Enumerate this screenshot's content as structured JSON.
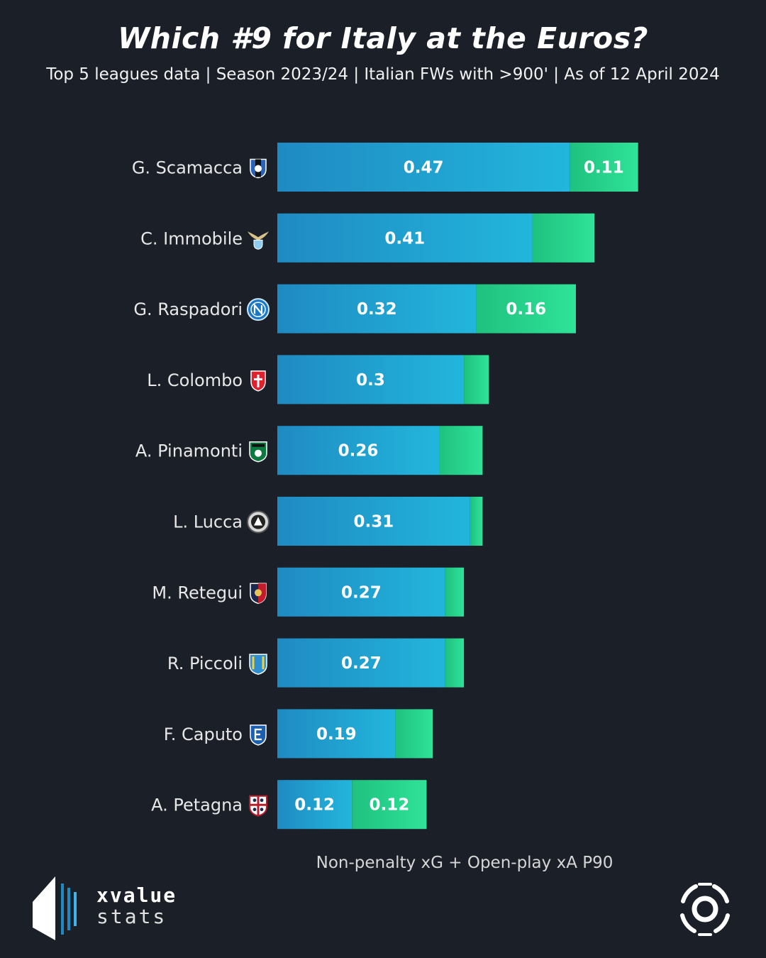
{
  "title": "Which #9 for Italy at the Euros?",
  "subtitle": "Top 5 leagues data | Season 2023/24 | Italian FWs with >900' | As of 12 April 2024",
  "brand": {
    "line1": "xvalue",
    "line2": "stats"
  },
  "colors": {
    "background": "#1b1f28",
    "xg_start": "#1f8ac2",
    "xg_end": "#22b6dc",
    "xa_start": "#1fc17f",
    "xa_end": "#2fe398"
  },
  "chart_data": {
    "type": "bar",
    "orientation": "horizontal",
    "stacked": true,
    "title": "Which #9 for Italy at the Euros?",
    "xlabel": "Non-penalty xG + Open-play xA P90",
    "ylabel": "",
    "xlim": [
      0,
      0.7
    ],
    "grid": false,
    "categories": [
      "G. Scamacca",
      "C. Immobile",
      "G. Raspadori",
      "L. Colombo",
      "A. Pinamonti",
      "L. Lucca",
      "M. Retegui",
      "R. Piccoli",
      "F. Caputo",
      "A. Petagna"
    ],
    "team_icons": [
      "atalanta-icon",
      "lazio-icon",
      "napoli-icon",
      "monza-icon",
      "sassuolo-icon",
      "udinese-icon",
      "genoa-icon",
      "lecce-icon",
      "empoli-icon",
      "cagliari-icon"
    ],
    "series": [
      {
        "name": "Non-penalty xG P90",
        "values": [
          0.47,
          0.41,
          0.32,
          0.3,
          0.26,
          0.31,
          0.27,
          0.27,
          0.19,
          0.12
        ],
        "labels": [
          "0.47",
          "0.41",
          "0.32",
          "0.3",
          "0.26",
          "0.31",
          "0.27",
          "0.27",
          "0.19",
          "0.12"
        ]
      },
      {
        "name": "Open-play xA P90",
        "values": [
          0.11,
          0.1,
          0.16,
          0.04,
          0.07,
          0.02,
          0.03,
          0.03,
          0.06,
          0.12
        ],
        "labels": [
          "0.11",
          "",
          "0.16",
          "",
          "",
          "",
          "",
          "",
          "",
          "0.12"
        ]
      }
    ]
  }
}
